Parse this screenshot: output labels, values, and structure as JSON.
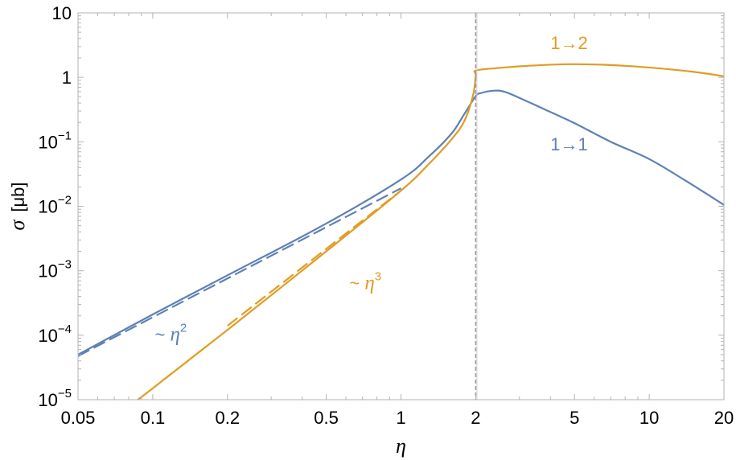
{
  "chart_data": {
    "type": "line",
    "title": "",
    "xlabel": "η",
    "ylabel_symbol": "σ",
    "ylabel_unit": "[μb]",
    "x_scale": "log",
    "y_scale": "log",
    "xlim": [
      0.05,
      20
    ],
    "ylim": [
      1e-05,
      10
    ],
    "grid": false,
    "x_ticks": [
      {
        "value": 0.05,
        "label": "0.05"
      },
      {
        "value": 0.1,
        "label": "0.1"
      },
      {
        "value": 0.2,
        "label": "0.2"
      },
      {
        "value": 0.5,
        "label": "0.5"
      },
      {
        "value": 1,
        "label": "1"
      },
      {
        "value": 2,
        "label": "2"
      },
      {
        "value": 5,
        "label": "5"
      },
      {
        "value": 10,
        "label": "10"
      },
      {
        "value": 20,
        "label": "20"
      }
    ],
    "y_ticks": [
      {
        "value": 10,
        "label": "10",
        "sup": ""
      },
      {
        "value": 1,
        "label": "1",
        "sup": ""
      },
      {
        "value": 0.1,
        "label": "10",
        "sup": "−1"
      },
      {
        "value": 0.01,
        "label": "10",
        "sup": "−2"
      },
      {
        "value": 0.001,
        "label": "10",
        "sup": "−3"
      },
      {
        "value": 0.0001,
        "label": "10",
        "sup": "−4"
      },
      {
        "value": 1e-05,
        "label": "10",
        "sup": "−5"
      }
    ],
    "threshold_x": 2,
    "series": [
      {
        "label": "1→1",
        "color": "#5e81b5",
        "dash": "none",
        "points": [
          [
            0.05,
            5e-05
          ],
          [
            0.1,
            0.00021
          ],
          [
            0.2,
            0.00085
          ],
          [
            0.5,
            0.0054
          ],
          [
            1,
            0.026
          ],
          [
            1.3,
            0.06
          ],
          [
            1.6,
            0.135
          ],
          [
            1.8,
            0.27
          ],
          [
            2,
            0.51
          ],
          [
            2.1,
            0.57
          ],
          [
            2.35,
            0.62
          ],
          [
            2.6,
            0.6
          ],
          [
            3,
            0.48
          ],
          [
            4,
            0.29
          ],
          [
            5,
            0.195
          ],
          [
            7,
            0.1
          ],
          [
            10,
            0.054
          ],
          [
            14,
            0.025
          ],
          [
            20,
            0.0105
          ]
        ]
      },
      {
        "label": "1→2",
        "color": "#e19c24",
        "dash": "none",
        "points": [
          [
            0.087,
            1e-05
          ],
          [
            0.1,
            1.5e-05
          ],
          [
            0.2,
            0.000121
          ],
          [
            0.5,
            0.002
          ],
          [
            1,
            0.0175
          ],
          [
            1.3,
            0.046
          ],
          [
            1.6,
            0.11
          ],
          [
            1.8,
            0.21
          ],
          [
            1.95,
            0.52
          ],
          [
            2,
            1.05
          ],
          [
            2.01,
            1.28
          ],
          [
            2.5,
            1.4
          ],
          [
            3,
            1.48
          ],
          [
            4,
            1.57
          ],
          [
            5,
            1.6
          ],
          [
            7,
            1.55
          ],
          [
            10,
            1.42
          ],
          [
            15,
            1.22
          ],
          [
            20,
            1.04
          ]
        ]
      },
      {
        "label": "~ η2 asymptote",
        "color": "#5e81b5",
        "dash": "16 6",
        "points": [
          [
            0.05,
            4.75e-05
          ],
          [
            1,
            0.019
          ]
        ]
      },
      {
        "label": "~ η3 asymptote",
        "color": "#e19c24",
        "dash": "16 6",
        "points": [
          [
            0.2,
            0.00014
          ],
          [
            1,
            0.0175
          ]
        ]
      }
    ],
    "annotations": [
      {
        "text": "1→2",
        "color": "#e19c24",
        "x": 4.0,
        "y": 2.75,
        "sup": ""
      },
      {
        "text": "1→1",
        "color": "#5e81b5",
        "x": 4.0,
        "y": 0.074,
        "sup": ""
      },
      {
        "text": "~ η",
        "color": "#e19c24",
        "x": 0.62,
        "y": 0.00052,
        "sup": "3"
      },
      {
        "text": "~ η",
        "color": "#5e81b5",
        "x": 0.102,
        "y": 8.3e-05,
        "sup": "2"
      }
    ]
  }
}
